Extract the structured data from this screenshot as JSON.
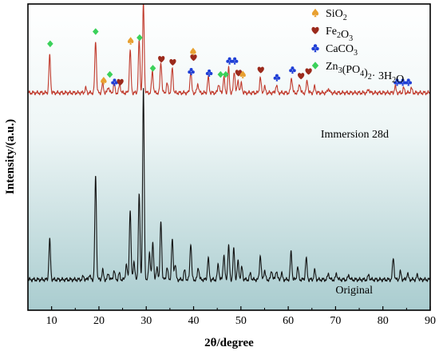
{
  "chart_data": {
    "type": "line",
    "title": "",
    "xlabel": "2θ/degree",
    "ylabel": "Intensity/(a.u.)",
    "xlim": [
      5,
      90
    ],
    "x_ticks": [
      10,
      20,
      30,
      40,
      50,
      60,
      70,
      80,
      90
    ],
    "y_ticks_shown": false,
    "grid": false,
    "background": "gradient",
    "series": [
      {
        "name": "Original",
        "color": "#111111",
        "baseline": 0.1,
        "peaks": [
          {
            "x": 9.6,
            "h": 0.13
          },
          {
            "x": 16.7,
            "h": 0.01
          },
          {
            "x": 18.0,
            "h": 0.015
          },
          {
            "x": 19.3,
            "h": 0.34
          },
          {
            "x": 20.8,
            "h": 0.03
          },
          {
            "x": 22.0,
            "h": 0.02
          },
          {
            "x": 23.2,
            "h": 0.03
          },
          {
            "x": 24.3,
            "h": 0.02
          },
          {
            "x": 25.8,
            "h": 0.05
          },
          {
            "x": 26.6,
            "h": 0.23
          },
          {
            "x": 27.4,
            "h": 0.06
          },
          {
            "x": 28.5,
            "h": 0.28
          },
          {
            "x": 29.4,
            "h": 0.62
          },
          {
            "x": 30.7,
            "h": 0.09
          },
          {
            "x": 31.4,
            "h": 0.12
          },
          {
            "x": 32.3,
            "h": 0.04
          },
          {
            "x": 33.1,
            "h": 0.19
          },
          {
            "x": 34.4,
            "h": 0.04
          },
          {
            "x": 35.5,
            "h": 0.13
          },
          {
            "x": 36.1,
            "h": 0.05
          },
          {
            "x": 38.1,
            "h": 0.03
          },
          {
            "x": 39.4,
            "h": 0.12
          },
          {
            "x": 41.0,
            "h": 0.04
          },
          {
            "x": 43.1,
            "h": 0.07
          },
          {
            "x": 45.2,
            "h": 0.05
          },
          {
            "x": 46.4,
            "h": 0.08
          },
          {
            "x": 47.4,
            "h": 0.11
          },
          {
            "x": 48.5,
            "h": 0.1
          },
          {
            "x": 49.4,
            "h": 0.06
          },
          {
            "x": 50.2,
            "h": 0.04
          },
          {
            "x": 52.0,
            "h": 0.02
          },
          {
            "x": 54.1,
            "h": 0.08
          },
          {
            "x": 55.0,
            "h": 0.03
          },
          {
            "x": 56.5,
            "h": 0.03
          },
          {
            "x": 57.5,
            "h": 0.03
          },
          {
            "x": 58.6,
            "h": 0.02
          },
          {
            "x": 60.6,
            "h": 0.09
          },
          {
            "x": 62.0,
            "h": 0.04
          },
          {
            "x": 63.8,
            "h": 0.07
          },
          {
            "x": 65.6,
            "h": 0.03
          },
          {
            "x": 68.5,
            "h": 0.02
          },
          {
            "x": 70.2,
            "h": 0.02
          },
          {
            "x": 72.8,
            "h": 0.015
          },
          {
            "x": 77.0,
            "h": 0.015
          },
          {
            "x": 82.2,
            "h": 0.07
          },
          {
            "x": 83.7,
            "h": 0.025
          },
          {
            "x": 85.2,
            "h": 0.02
          },
          {
            "x": 87.3,
            "h": 0.015
          }
        ]
      },
      {
        "name": "Immersion 28d",
        "color": "#c0392b",
        "baseline": 0.71,
        "peaks": [
          {
            "x": 9.6,
            "h": 0.12
          },
          {
            "x": 17.2,
            "h": 0.015
          },
          {
            "x": 19.3,
            "h": 0.17
          },
          {
            "x": 20.8,
            "h": 0.03
          },
          {
            "x": 22.0,
            "h": 0.02
          },
          {
            "x": 23.2,
            "h": 0.03
          },
          {
            "x": 24.4,
            "h": 0.03
          },
          {
            "x": 26.6,
            "h": 0.14
          },
          {
            "x": 28.5,
            "h": 0.17
          },
          {
            "x": 29.4,
            "h": 0.29
          },
          {
            "x": 31.3,
            "h": 0.07
          },
          {
            "x": 33.1,
            "h": 0.1
          },
          {
            "x": 34.4,
            "h": 0.03
          },
          {
            "x": 35.5,
            "h": 0.08
          },
          {
            "x": 39.4,
            "h": 0.07
          },
          {
            "x": 40.9,
            "h": 0.03
          },
          {
            "x": 43.1,
            "h": 0.05
          },
          {
            "x": 45.3,
            "h": 0.03
          },
          {
            "x": 46.4,
            "h": 0.05
          },
          {
            "x": 47.4,
            "h": 0.08
          },
          {
            "x": 48.6,
            "h": 0.07
          },
          {
            "x": 49.4,
            "h": 0.04
          },
          {
            "x": 50.1,
            "h": 0.03
          },
          {
            "x": 54.1,
            "h": 0.05
          },
          {
            "x": 55.0,
            "h": 0.02
          },
          {
            "x": 57.5,
            "h": 0.025
          },
          {
            "x": 60.7,
            "h": 0.05
          },
          {
            "x": 62.4,
            "h": 0.03
          },
          {
            "x": 64.0,
            "h": 0.04
          },
          {
            "x": 65.6,
            "h": 0.02
          },
          {
            "x": 68.5,
            "h": 0.015
          },
          {
            "x": 77.0,
            "h": 0.012
          },
          {
            "x": 82.6,
            "h": 0.02
          },
          {
            "x": 84.4,
            "h": 0.015
          },
          {
            "x": 86.0,
            "h": 0.015
          }
        ]
      }
    ],
    "phase_markers": [
      {
        "phase": "Zn3(PO4)2·3H2O",
        "x": 9.7,
        "y": 0.87
      },
      {
        "phase": "Zn3(PO4)2·3H2O",
        "x": 19.3,
        "y": 0.91
      },
      {
        "phase": "SiO2",
        "x": 21.0,
        "y": 0.75
      },
      {
        "phase": "Zn3(PO4)2·3H2O",
        "x": 22.3,
        "y": 0.77
      },
      {
        "phase": "CaCO3",
        "x": 23.3,
        "y": 0.745
      },
      {
        "phase": "Fe2O3",
        "x": 24.5,
        "y": 0.745
      },
      {
        "phase": "SiO2",
        "x": 26.7,
        "y": 0.88
      },
      {
        "phase": "Zn3(PO4)2·3H2O",
        "x": 28.6,
        "y": 0.89
      },
      {
        "phase": "CaCO3",
        "x": 29.4,
        "y": 1.03
      },
      {
        "phase": "Zn3(PO4)2·3H2O",
        "x": 31.4,
        "y": 0.79
      },
      {
        "phase": "Fe2O3",
        "x": 33.2,
        "y": 0.82
      },
      {
        "phase": "Fe2O3",
        "x": 35.6,
        "y": 0.81
      },
      {
        "phase": "CaCO3",
        "x": 39.5,
        "y": 0.78
      },
      {
        "phase": "SiO2",
        "x": 39.9,
        "y": 0.845
      },
      {
        "phase": "Fe2O3",
        "x": 40.0,
        "y": 0.825
      },
      {
        "phase": "CaCO3",
        "x": 43.3,
        "y": 0.775
      },
      {
        "phase": "Zn3(PO4)2·3H2O",
        "x": 45.7,
        "y": 0.77
      },
      {
        "phase": "Zn3(PO4)2·3H2O",
        "x": 46.8,
        "y": 0.77
      },
      {
        "phase": "CaCO3",
        "x": 47.6,
        "y": 0.815
      },
      {
        "phase": "CaCO3",
        "x": 48.7,
        "y": 0.815
      },
      {
        "phase": "Fe2O3",
        "x": 49.5,
        "y": 0.775
      },
      {
        "phase": "SiO2",
        "x": 50.4,
        "y": 0.77
      },
      {
        "phase": "Fe2O3",
        "x": 54.2,
        "y": 0.785
      },
      {
        "phase": "CaCO3",
        "x": 57.6,
        "y": 0.76
      },
      {
        "phase": "CaCO3",
        "x": 60.9,
        "y": 0.785
      },
      {
        "phase": "Fe2O3",
        "x": 62.7,
        "y": 0.765
      },
      {
        "phase": "Fe2O3",
        "x": 64.3,
        "y": 0.78
      },
      {
        "phase": "CaCO3",
        "x": 83.0,
        "y": 0.745
      },
      {
        "phase": "CaCO3",
        "x": 84.2,
        "y": 0.745
      },
      {
        "phase": "CaCO3",
        "x": 85.4,
        "y": 0.745
      }
    ],
    "legend_position": "top-right",
    "legend": [
      {
        "phase": "SiO2",
        "label_main": "SiO",
        "sub1": "2",
        "mid": "",
        "sub2": "",
        "tail": "",
        "sub3": "",
        "end": "",
        "color": "#e8a030",
        "icon": "spade-icon"
      },
      {
        "phase": "Fe2O3",
        "label_main": "Fe",
        "sub1": "2",
        "mid": "O",
        "sub2": "3",
        "tail": "",
        "sub3": "",
        "end": "",
        "color": "#9b2a1c",
        "icon": "heart-icon"
      },
      {
        "phase": "CaCO3",
        "label_main": "CaCO",
        "sub1": "3",
        "mid": "",
        "sub2": "",
        "tail": "",
        "sub3": "",
        "end": "",
        "color": "#1f3fd6",
        "icon": "club-icon"
      },
      {
        "phase": "Zn3(PO4)2·3H2O",
        "label_main": "Zn",
        "sub1": "3",
        "mid": "(PO",
        "sub2": "4",
        "tail": ")",
        "sub3": "2",
        "end": "· 3H",
        "sub4": "2",
        "end2": "O",
        "color": "#3bd15a",
        "icon": "diamond-icon"
      }
    ],
    "trace_labels": [
      {
        "text": "Immersion 28d",
        "for": "Immersion 28d"
      },
      {
        "text": "Original",
        "for": "Original"
      }
    ]
  }
}
